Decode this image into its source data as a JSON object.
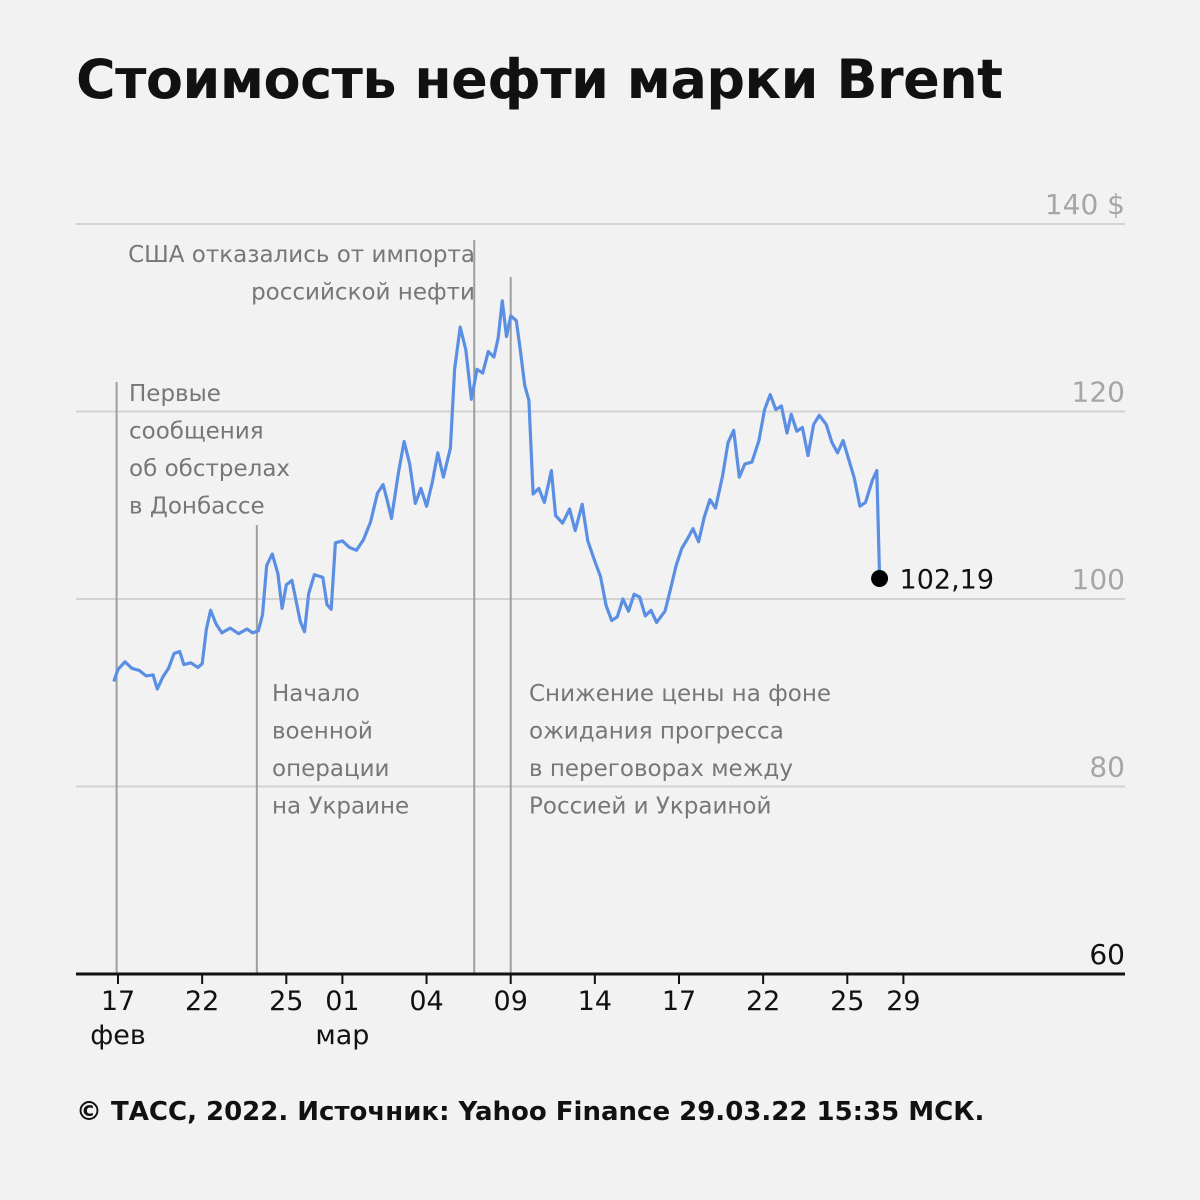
{
  "title": "Стоимость нефти марки Brent",
  "footer": "© ТАСС, 2022. Источник: Yahoo Finance 29.03.22 15:35 МСК.",
  "colors": {
    "line": "#5b8fe4",
    "grid": "#d3d3d3",
    "annotation_line": "#9e9e9e",
    "axis": "#111111",
    "background": "#f2f2f2"
  },
  "chart_data": {
    "type": "line",
    "title": "Стоимость нефти марки Brent",
    "xlabel": "",
    "ylabel": "",
    "ylim": [
      60,
      140
    ],
    "grid": true,
    "y_ticks": [
      {
        "value": 140,
        "label": "140 $"
      },
      {
        "value": 120,
        "label": "120"
      },
      {
        "value": 100,
        "label": "100"
      },
      {
        "value": 80,
        "label": "80"
      },
      {
        "value": 60,
        "label": "60"
      }
    ],
    "x_ticks": [
      {
        "day": 0,
        "label": "17",
        "sub": "фев"
      },
      {
        "day": 3,
        "label": "22",
        "sub": ""
      },
      {
        "day": 6,
        "label": "25",
        "sub": ""
      },
      {
        "day": 8,
        "label": "01",
        "sub": "мар"
      },
      {
        "day": 11,
        "label": "04",
        "sub": ""
      },
      {
        "day": 14,
        "label": "09",
        "sub": ""
      },
      {
        "day": 17,
        "label": "14",
        "sub": ""
      },
      {
        "day": 20,
        "label": "17",
        "sub": ""
      },
      {
        "day": 23,
        "label": "22",
        "sub": ""
      },
      {
        "day": 26,
        "label": "25",
        "sub": ""
      },
      {
        "day": 28,
        "label": "29",
        "sub": ""
      }
    ],
    "series": [
      {
        "points": [
          [
            -0.15,
            91.2
          ],
          [
            0.0,
            92.5
          ],
          [
            0.25,
            93.3
          ],
          [
            0.5,
            92.6
          ],
          [
            0.75,
            92.4
          ],
          [
            1.0,
            91.8
          ],
          [
            1.25,
            91.9
          ],
          [
            1.4,
            90.4
          ],
          [
            1.6,
            91.7
          ],
          [
            1.8,
            92.6
          ],
          [
            2.0,
            94.2
          ],
          [
            2.2,
            94.4
          ],
          [
            2.35,
            93.0
          ],
          [
            2.6,
            93.2
          ],
          [
            2.85,
            92.7
          ],
          [
            3.0,
            93.1
          ],
          [
            3.15,
            96.8
          ],
          [
            3.3,
            98.8
          ],
          [
            3.5,
            97.3
          ],
          [
            3.7,
            96.4
          ],
          [
            4.0,
            96.9
          ],
          [
            4.3,
            96.3
          ],
          [
            4.6,
            96.8
          ],
          [
            4.8,
            96.4
          ],
          [
            5.0,
            96.6
          ],
          [
            5.15,
            98.3
          ],
          [
            5.3,
            103.6
          ],
          [
            5.5,
            104.8
          ],
          [
            5.7,
            102.7
          ],
          [
            5.85,
            99.0
          ],
          [
            6.0,
            101.5
          ],
          [
            6.2,
            102.0
          ],
          [
            6.35,
            99.8
          ],
          [
            6.5,
            97.6
          ],
          [
            6.65,
            96.5
          ],
          [
            6.8,
            100.6
          ],
          [
            7.0,
            102.6
          ],
          [
            7.3,
            102.3
          ],
          [
            7.45,
            99.4
          ],
          [
            7.6,
            98.9
          ],
          [
            7.75,
            106.0
          ],
          [
            8.0,
            106.2
          ],
          [
            8.25,
            105.5
          ],
          [
            8.5,
            105.2
          ],
          [
            8.75,
            106.3
          ],
          [
            9.0,
            108.2
          ],
          [
            9.25,
            111.3
          ],
          [
            9.45,
            112.2
          ],
          [
            9.6,
            110.5
          ],
          [
            9.75,
            108.6
          ],
          [
            10.0,
            113.5
          ],
          [
            10.2,
            116.8
          ],
          [
            10.4,
            114.4
          ],
          [
            10.6,
            110.2
          ],
          [
            10.8,
            111.8
          ],
          [
            11.0,
            109.9
          ],
          [
            11.2,
            112.4
          ],
          [
            11.4,
            115.6
          ],
          [
            11.6,
            113.0
          ],
          [
            11.85,
            116.1
          ],
          [
            12.0,
            124.5
          ],
          [
            12.2,
            129.0
          ],
          [
            12.4,
            126.6
          ],
          [
            12.6,
            121.3
          ],
          [
            12.8,
            124.5
          ],
          [
            13.0,
            124.1
          ],
          [
            13.2,
            126.4
          ],
          [
            13.4,
            125.8
          ],
          [
            13.55,
            127.8
          ],
          [
            13.7,
            131.8
          ],
          [
            13.85,
            128.0
          ],
          [
            14.0,
            130.2
          ],
          [
            14.2,
            129.7
          ],
          [
            14.35,
            126.4
          ],
          [
            14.5,
            122.8
          ],
          [
            14.65,
            121.2
          ],
          [
            14.8,
            111.2
          ],
          [
            15.0,
            111.8
          ],
          [
            15.2,
            110.3
          ],
          [
            15.45,
            113.7
          ],
          [
            15.6,
            108.9
          ],
          [
            15.85,
            108.1
          ],
          [
            16.1,
            109.6
          ],
          [
            16.3,
            107.3
          ],
          [
            16.55,
            110.1
          ],
          [
            16.75,
            106.2
          ],
          [
            17.0,
            104.0
          ],
          [
            17.2,
            102.4
          ],
          [
            17.4,
            99.3
          ],
          [
            17.6,
            97.7
          ],
          [
            17.8,
            98.1
          ],
          [
            18.0,
            100.0
          ],
          [
            18.2,
            98.7
          ],
          [
            18.4,
            100.5
          ],
          [
            18.6,
            100.2
          ],
          [
            18.8,
            98.2
          ],
          [
            19.0,
            98.8
          ],
          [
            19.2,
            97.5
          ],
          [
            19.5,
            98.7
          ],
          [
            19.7,
            101.1
          ],
          [
            19.9,
            103.6
          ],
          [
            20.1,
            105.4
          ],
          [
            20.3,
            106.4
          ],
          [
            20.5,
            107.5
          ],
          [
            20.7,
            106.1
          ],
          [
            20.9,
            108.7
          ],
          [
            21.1,
            110.6
          ],
          [
            21.3,
            109.7
          ],
          [
            21.55,
            113.1
          ],
          [
            21.75,
            116.7
          ],
          [
            21.95,
            118.0
          ],
          [
            22.15,
            113.0
          ],
          [
            22.35,
            114.4
          ],
          [
            22.6,
            114.6
          ],
          [
            22.85,
            116.9
          ],
          [
            23.05,
            120.2
          ],
          [
            23.25,
            121.8
          ],
          [
            23.45,
            120.2
          ],
          [
            23.65,
            120.6
          ],
          [
            23.85,
            117.7
          ],
          [
            24.0,
            119.7
          ],
          [
            24.2,
            117.9
          ],
          [
            24.4,
            118.3
          ],
          [
            24.6,
            115.3
          ],
          [
            24.8,
            118.6
          ],
          [
            25.0,
            119.6
          ],
          [
            25.25,
            118.6
          ],
          [
            25.45,
            116.7
          ],
          [
            25.65,
            115.6
          ],
          [
            25.85,
            116.9
          ],
          [
            26.05,
            114.9
          ],
          [
            26.25,
            112.9
          ],
          [
            26.45,
            109.9
          ],
          [
            26.65,
            110.3
          ],
          [
            26.9,
            112.7
          ],
          [
            27.05,
            113.7
          ],
          [
            27.15,
            102.19
          ]
        ]
      }
    ],
    "last_value": {
      "day": 27.15,
      "value": 102.19,
      "label": "102,19"
    },
    "annotations": [
      {
        "day": -0.05,
        "y_top": 1.0,
        "lines": [
          "Первые",
          "сообщения",
          "об обстрелах",
          "в Донбассе"
        ]
      },
      {
        "day": 4.95,
        "y_top": 1.0,
        "lines": [
          "Начало",
          "военной",
          "операции",
          "на Украине"
        ]
      },
      {
        "day": 12.7,
        "y_top": 1.0,
        "lines": [
          "США отказались от импорта",
          "российской нефти"
        ]
      },
      {
        "day": 14.0,
        "y_top": 1.0,
        "lines": [
          "Снижение цены на фоне",
          "ожидания прогресса",
          "в переговорах между",
          "Россией и Украиной"
        ]
      }
    ]
  }
}
